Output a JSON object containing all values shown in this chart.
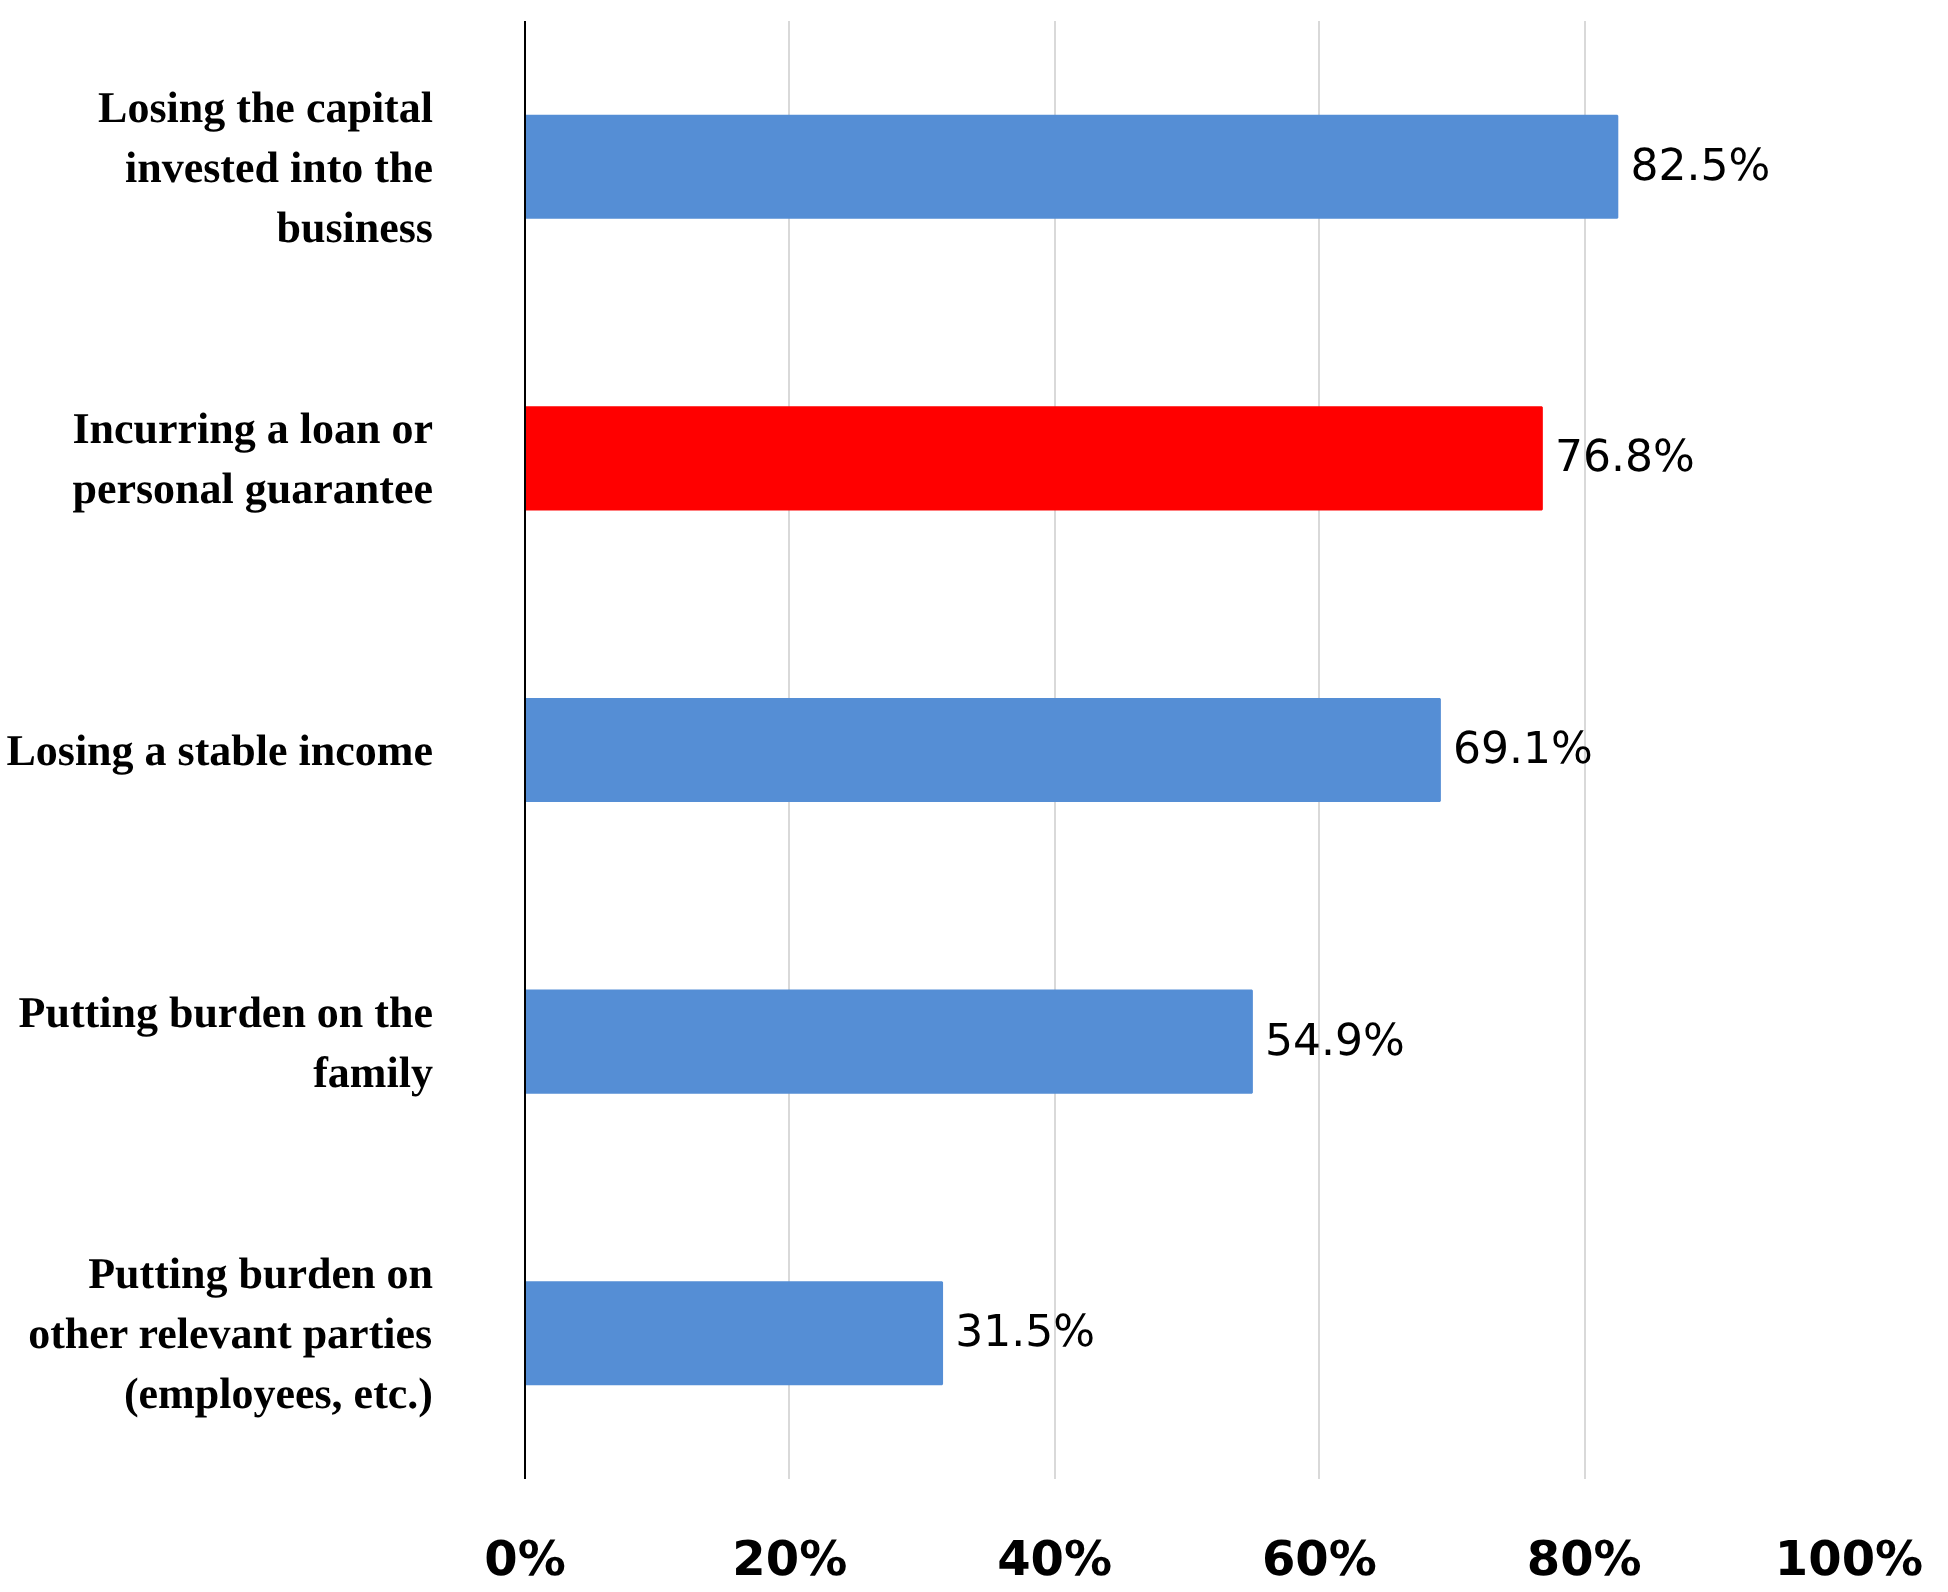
{
  "chart_data": {
    "type": "bar",
    "orientation": "horizontal",
    "categories": [
      "Losing the capital invested into the business",
      "Incurring a loan or personal guarantee",
      "Losing a stable income",
      "Putting burden on the family",
      "Putting burden on other relevant parties (employees, etc.)"
    ],
    "values": [
      82.5,
      76.8,
      69.1,
      54.9,
      31.5
    ],
    "colors": [
      "#558ed5",
      "#ff0000",
      "#558ed5",
      "#558ed5",
      "#558ed5"
    ],
    "value_labels": [
      "82.5%",
      "76.8%",
      "69.1%",
      "54.9%",
      "31.5%"
    ],
    "xlim": [
      0,
      100
    ],
    "xticks": [
      {
        "value": 0,
        "label": "0%"
      },
      {
        "value": 20,
        "label": "20%"
      },
      {
        "value": 40,
        "label": "40%"
      },
      {
        "value": 60,
        "label": "60%"
      },
      {
        "value": 80,
        "label": "80%"
      },
      {
        "value": 100,
        "label": "100%"
      }
    ],
    "grid": "x"
  }
}
